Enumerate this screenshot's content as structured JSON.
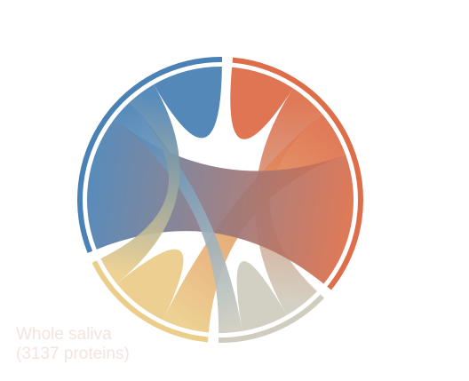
{
  "chart_data": {
    "type": "chord",
    "title": "",
    "groups": [
      {
        "name": "",
        "color": "#dd6e49"
      },
      {
        "name": "",
        "color": "#d0cdbf"
      },
      {
        "name": "",
        "color": "#ecce8b"
      },
      {
        "name": "",
        "color": "#4a82b5"
      }
    ],
    "ribbons": [
      {
        "from": 0,
        "to": 0,
        "value": 0.055
      },
      {
        "from": 0,
        "to": 1,
        "value": 0.065
      },
      {
        "from": 0,
        "to": 2,
        "value": 0.08
      },
      {
        "from": 0,
        "to": 3,
        "value": 0.23
      },
      {
        "from": 1,
        "to": 1,
        "value": 0.04
      },
      {
        "from": 1,
        "to": 3,
        "value": 0.04
      },
      {
        "from": 2,
        "to": 2,
        "value": 0.05
      },
      {
        "from": 2,
        "to": 3,
        "value": 0.05
      },
      {
        "from": 3,
        "to": 3,
        "value": 0.06
      }
    ],
    "annotation": {
      "line1": "Whole saliva",
      "line2": "(3137 proteins)"
    }
  }
}
